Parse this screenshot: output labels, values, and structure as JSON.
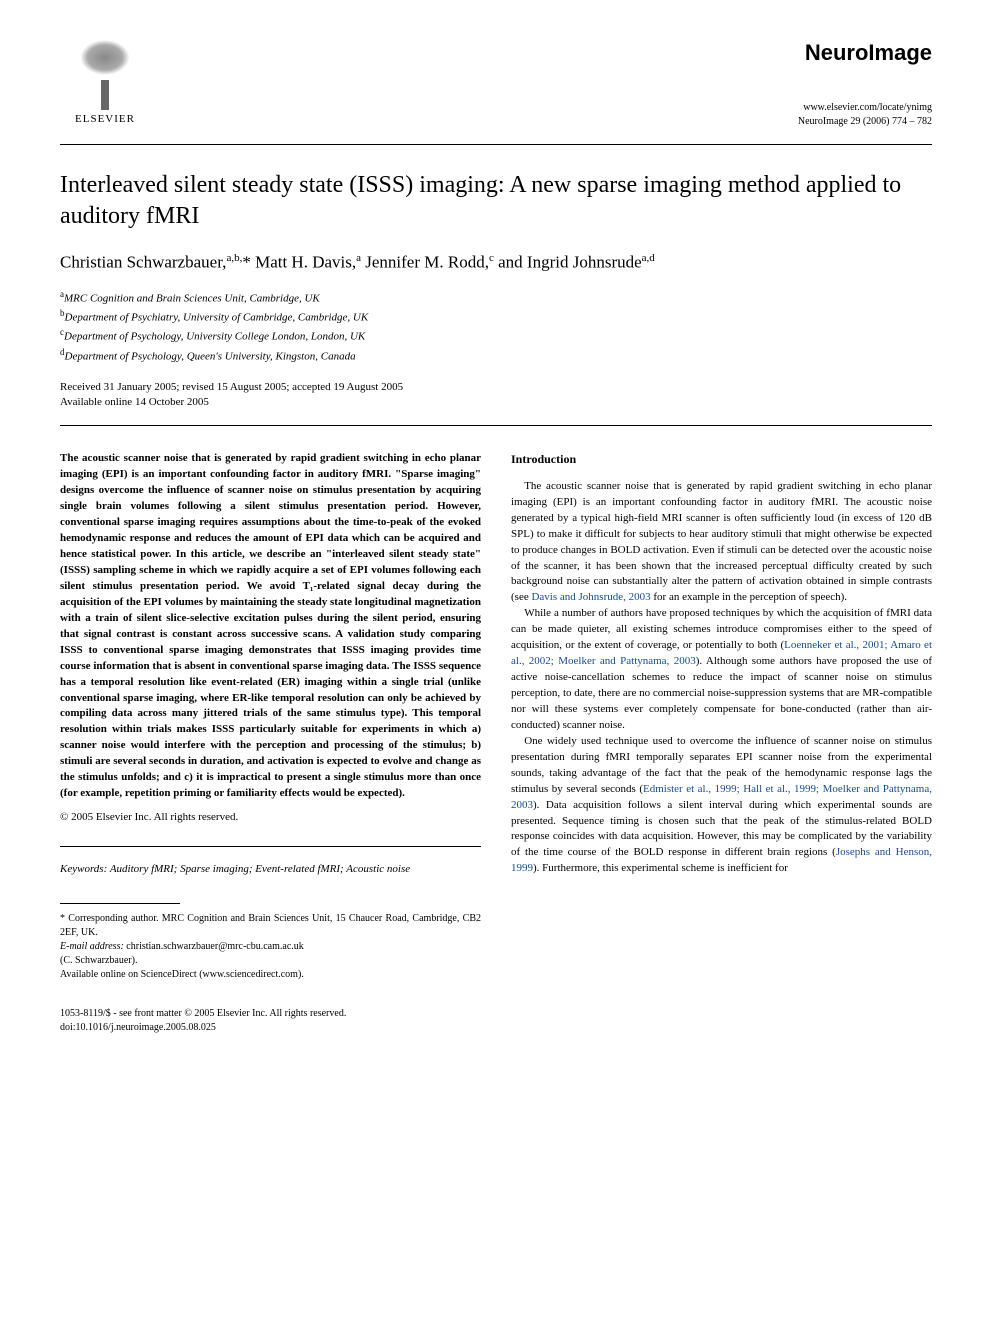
{
  "header": {
    "publisher": "ELSEVIER",
    "journal_name": "NeuroImage",
    "journal_url": "www.elsevier.com/locate/ynimg",
    "journal_citation": "NeuroImage 29 (2006) 774 – 782"
  },
  "title": "Interleaved silent steady state (ISSS) imaging: A new sparse imaging method applied to auditory fMRI",
  "authors_html": "Christian Schwarzbauer,<sup>a,b,</sup>* Matt H. Davis,<sup>a</sup> Jennifer M. Rodd,<sup>c</sup> and Ingrid Johnsrude<sup>a,d</sup>",
  "affiliations": [
    {
      "sup": "a",
      "text": "MRC Cognition and Brain Sciences Unit, Cambridge, UK"
    },
    {
      "sup": "b",
      "text": "Department of Psychiatry, University of Cambridge, Cambridge, UK"
    },
    {
      "sup": "c",
      "text": "Department of Psychology, University College London, London, UK"
    },
    {
      "sup": "d",
      "text": "Department of Psychology, Queen's University, Kingston, Canada"
    }
  ],
  "dates": {
    "received": "Received 31 January 2005; revised 15 August 2005; accepted 19 August 2005",
    "online": "Available online 14 October 2005"
  },
  "abstract": "The acoustic scanner noise that is generated by rapid gradient switching in echo planar imaging (EPI) is an important confounding factor in auditory fMRI. \"Sparse imaging\" designs overcome the influence of scanner noise on stimulus presentation by acquiring single brain volumes following a silent stimulus presentation period. However, conventional sparse imaging requires assumptions about the time-to-peak of the evoked hemodynamic response and reduces the amount of EPI data which can be acquired and hence statistical power. In this article, we describe an \"interleaved silent steady state\" (ISSS) sampling scheme in which we rapidly acquire a set of EPI volumes following each silent stimulus presentation period. We avoid T₁-related signal decay during the acquisition of the EPI volumes by maintaining the steady state longitudinal magnetization with a train of silent slice-selective excitation pulses during the silent period, ensuring that signal contrast is constant across successive scans. A validation study comparing ISSS to conventional sparse imaging demonstrates that ISSS imaging provides time course information that is absent in conventional sparse imaging data. The ISSS sequence has a temporal resolution like event-related (ER) imaging within a single trial (unlike conventional sparse imaging, where ER-like temporal resolution can only be achieved by compiling data across many jittered trials of the same stimulus type). This temporal resolution within trials makes ISSS particularly suitable for experiments in which a) scanner noise would interfere with the perception and processing of the stimulus; b) stimuli are several seconds in duration, and activation is expected to evolve and change as the stimulus unfolds; and c) it is impractical to present a single stimulus more than once (for example, repetition priming or familiarity effects would be expected).",
  "abstract_copyright": "© 2005 Elsevier Inc. All rights reserved.",
  "keywords_label": "Keywords:",
  "keywords": "Auditory fMRI; Sparse imaging; Event-related fMRI; Acoustic noise",
  "intro_heading": "Introduction",
  "intro_paragraphs": [
    "The acoustic scanner noise that is generated by rapid gradient switching in echo planar imaging (EPI) is an important confounding factor in auditory fMRI. The acoustic noise generated by a typical high-field MRI scanner is often sufficiently loud (in excess of 120 dB SPL) to make it difficult for subjects to hear auditory stimuli that might otherwise be expected to produce changes in BOLD activation. Even if stimuli can be detected over the acoustic noise of the scanner, it has been shown that the increased perceptual difficulty created by such background noise can substantially alter the pattern of activation obtained in simple contrasts (see ",
    "While a number of authors have proposed techniques by which the acquisition of fMRI data can be made quieter, all existing schemes introduce compromises either to the speed of acquisition, or the extent of coverage, or potentially to both (",
    "One widely used technique used to overcome the influence of scanner noise on stimulus presentation during fMRI temporally separates EPI scanner noise from the experimental sounds, taking advantage of the fact that the peak of the hemodynamic response lags the stimulus by several seconds ("
  ],
  "intro_refs": {
    "p1_ref": "Davis and Johnsrude, 2003",
    "p1_tail": " for an example in the perception of speech).",
    "p2_ref": "Loenneker et al., 2001; Amaro et al., 2002; Moelker and Pattynama, 2003",
    "p2_tail": "). Although some authors have proposed the use of active noise-cancellation schemes to reduce the impact of scanner noise on stimulus perception, to date, there are no commercial noise-suppression systems that are MR-compatible nor will these systems ever completely compensate for bone-conducted (rather than air-conducted) scanner noise.",
    "p3_ref": "Edmister et al., 1999; Hall et al., 1999; Moelker and Pattynama, 2003",
    "p3_tail": "). Data acquisition follows a silent interval during which experimental sounds are presented. Sequence timing is chosen such that the peak of the stimulus-related BOLD response coincides with data acquisition. However, this may be complicated by the variability of the time course of the BOLD response in different brain regions (",
    "p3_ref2": "Josephs and Henson, 1999",
    "p3_tail2": "). Furthermore, this experimental scheme is inefficient for"
  },
  "footnotes": {
    "corr": "* Corresponding author. MRC Cognition and Brain Sciences Unit, 15 Chaucer Road, Cambridge, CB2 2EF, UK.",
    "email_label": "E-mail address:",
    "email": "christian.schwarzbauer@mrc-cbu.cam.ac.uk",
    "email_name": "(C. Schwarzbauer).",
    "sciencedirect": "Available online on ScienceDirect (www.sciencedirect.com)."
  },
  "footer": {
    "issn": "1053-8119/$ - see front matter © 2005 Elsevier Inc. All rights reserved.",
    "doi": "doi:10.1016/j.neuroimage.2005.08.025"
  }
}
